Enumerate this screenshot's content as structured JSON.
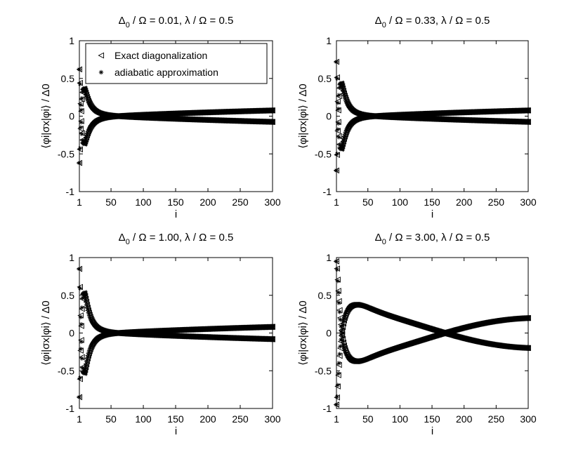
{
  "figure": {
    "legend_placement": "top-left of first panel",
    "legend": [
      {
        "label": "Exact diagonalization",
        "marker": "triangle-left"
      },
      {
        "label": "adiabatic approximation",
        "marker": "asterisk"
      }
    ]
  },
  "chart_data": [
    {
      "type": "scatter",
      "title_prefix": "Δ",
      "title_sub": "0",
      "title_suffix": " / Ω = 0.01, λ / Ω = 0.5",
      "xlabel": "i",
      "ylabel": "⟨φi|σx|φi⟩ / Δ0",
      "xlim": [
        1,
        300
      ],
      "ylim": [
        -1,
        1
      ],
      "xticks": [
        1,
        50,
        100,
        150,
        200,
        250,
        300
      ],
      "yticks": [
        -1,
        -0.5,
        0,
        0.5,
        1
      ],
      "grid": false,
      "envelope": {
        "amp_start": 0.62,
        "amp_end": 0.14,
        "decay": 0.1,
        "period_start": 4,
        "period_end": 70,
        "chirp": 1.0
      },
      "series": [
        {
          "name": "Exact diagonalization",
          "marker": "triangle-left",
          "n": 300
        },
        {
          "name": "adiabatic approximation",
          "marker": "asterisk",
          "n": 300
        }
      ]
    },
    {
      "type": "scatter",
      "title_prefix": "Δ",
      "title_sub": "0",
      "title_suffix": " / Ω = 0.33, λ / Ω = 0.5",
      "xlabel": "i",
      "ylabel": "⟨φi|σx|φi⟩ / Δ0",
      "xlim": [
        1,
        300
      ],
      "ylim": [
        -1,
        1
      ],
      "xticks": [
        1,
        50,
        100,
        150,
        200,
        250,
        300
      ],
      "yticks": [
        -1,
        -0.5,
        0,
        0.5,
        1
      ],
      "grid": false,
      "envelope": {
        "amp_start": 0.72,
        "amp_end": 0.14,
        "decay": 0.09,
        "period_start": 4,
        "period_end": 70,
        "chirp": 1.0
      },
      "series": [
        {
          "name": "Exact diagonalization",
          "marker": "triangle-left",
          "n": 300
        },
        {
          "name": "adiabatic approximation",
          "marker": "asterisk",
          "n": 300
        }
      ]
    },
    {
      "type": "scatter",
      "title_prefix": "Δ",
      "title_sub": "0",
      "title_suffix": " / Ω = 1.00, λ / Ω = 0.5",
      "xlabel": "i",
      "ylabel": "⟨φi|σx|φi⟩ / Δ0",
      "xlim": [
        1,
        300
      ],
      "ylim": [
        -1,
        1
      ],
      "xticks": [
        1,
        50,
        100,
        150,
        200,
        250,
        300
      ],
      "yticks": [
        -1,
        -0.5,
        0,
        0.5,
        1
      ],
      "grid": false,
      "envelope": {
        "amp_start": 0.85,
        "amp_end": 0.15,
        "decay": 0.08,
        "period_start": 4,
        "period_end": 70,
        "chirp": 1.0
      },
      "series": [
        {
          "name": "Exact diagonalization",
          "marker": "triangle-left",
          "n": 300
        },
        {
          "name": "adiabatic approximation",
          "marker": "asterisk",
          "n": 300
        }
      ]
    },
    {
      "type": "scatter",
      "title_prefix": "Δ",
      "title_sub": "0",
      "title_suffix": " / Ω = 3.00, λ / Ω = 0.5",
      "xlabel": "i",
      "ylabel": "⟨φi|σx|φi⟩ / Δ0",
      "xlim": [
        1,
        300
      ],
      "ylim": [
        -1,
        1
      ],
      "xticks": [
        1,
        50,
        100,
        150,
        200,
        250,
        300
      ],
      "yticks": [
        -1,
        -0.5,
        0,
        0.5,
        1
      ],
      "grid": false,
      "envelope": {
        "amp_start": 0.95,
        "amp_end": 0.2,
        "decay": 0.035,
        "period_start": 6,
        "period_end": 60,
        "chirp": 1.6
      },
      "series": [
        {
          "name": "Exact diagonalization",
          "marker": "triangle-left",
          "n": 300
        },
        {
          "name": "adiabatic approximation",
          "marker": "asterisk",
          "n": 300
        }
      ]
    }
  ]
}
